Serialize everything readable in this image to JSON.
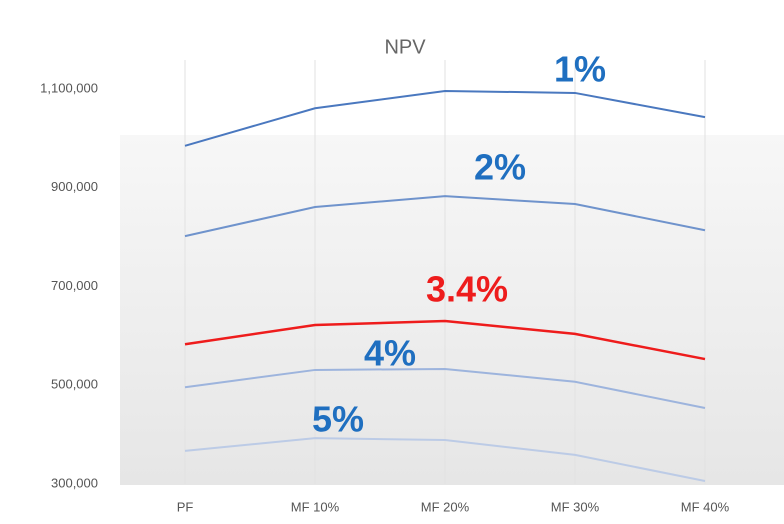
{
  "chart_data": {
    "type": "line",
    "title": "NPV",
    "categories": [
      "PF",
      "MF 10%",
      "MF 20%",
      "MF 30%",
      "MF 40%"
    ],
    "series": [
      {
        "name": "1%",
        "color": "#4a78bf",
        "label_color": "#1f6fc0",
        "values": [
          985000,
          1061000,
          1096000,
          1092000,
          1043000
        ]
      },
      {
        "name": "2%",
        "color": "#6f93cc",
        "label_color": "#1f6fc0",
        "values": [
          802000,
          861000,
          883000,
          867000,
          814000
        ]
      },
      {
        "name": "3.4%",
        "color": "#ee1c1c",
        "label_color": "#ee1c1c",
        "values": [
          583000,
          622000,
          630000,
          604000,
          553000
        ]
      },
      {
        "name": "4%",
        "color": "#9db4dd",
        "label_color": "#1f6fc0",
        "values": [
          496000,
          531000,
          533000,
          507000,
          454000
        ]
      },
      {
        "name": "5%",
        "color": "#bccbe6",
        "label_color": "#1f6fc0",
        "values": [
          367000,
          393000,
          389000,
          359000,
          306000
        ]
      }
    ],
    "ylim": [
      300000,
      1100000
    ],
    "yticks": [
      {
        "value": 300000,
        "label": "300,000"
      },
      {
        "value": 500000,
        "label": "500,000"
      },
      {
        "value": 700000,
        "label": "700,000"
      },
      {
        "value": 900000,
        "label": "900,000"
      },
      {
        "value": 1100000,
        "label": "1,100,000"
      }
    ],
    "grid": false
  }
}
